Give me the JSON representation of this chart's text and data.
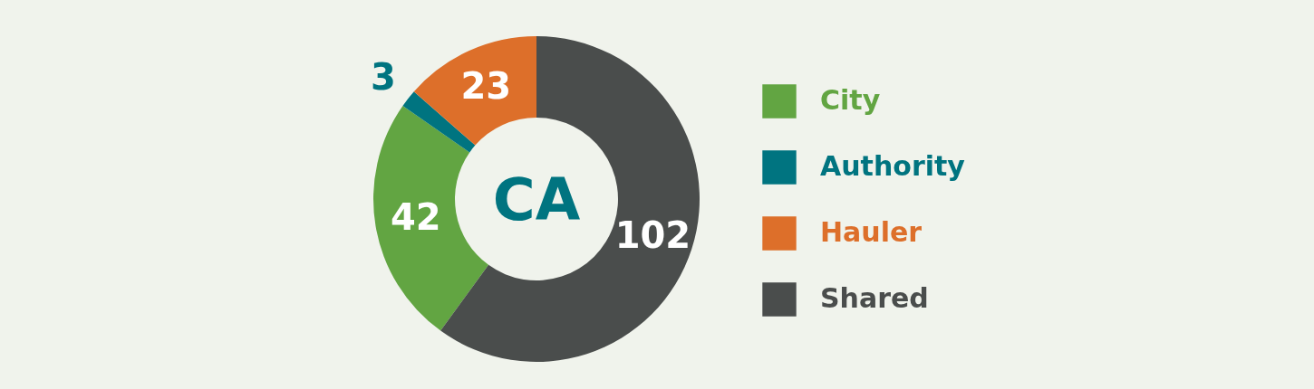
{
  "chart_data": {
    "type": "donut",
    "categories": [
      "City",
      "Authority",
      "Hauler",
      "Shared"
    ],
    "values": [
      42,
      3,
      23,
      102
    ],
    "colors": [
      "#62a542",
      "#007480",
      "#dd6f2a",
      "#4a4d4c"
    ],
    "data_labels": true,
    "legend": "right",
    "annotations": [
      "CA"
    ]
  }
}
